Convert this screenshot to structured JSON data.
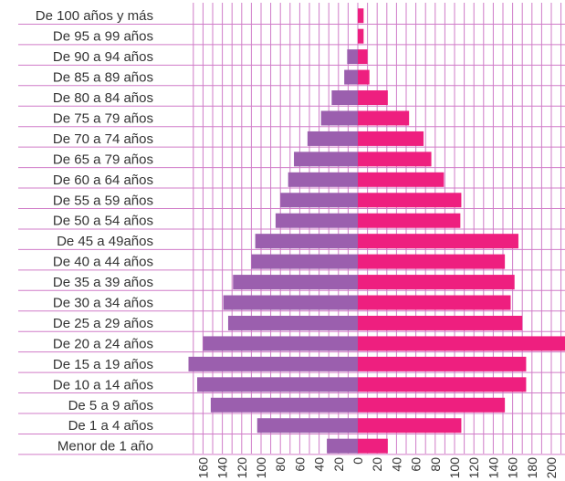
{
  "chart_data": {
    "type": "bar",
    "orientation": "horizontal",
    "subtype": "population-pyramid",
    "categories": [
      "De 100 años y más",
      "De 95 a 99 años",
      "De 90 a 94 años",
      "De 85 a 89 años",
      "De 80 a 84 años",
      "De 75 a 79 años",
      "De 70 a 74 años",
      "De 65 a 79 años",
      "De 60 a 64 años",
      "De 55 a 59 años",
      "De 50 a 54 años",
      "De 45 a 49años",
      "De 40 a 44 años",
      "De 35 a 39 años",
      "De 30 a 34 años",
      "De 25 a 29 años",
      "De 20 a 24 años",
      "De 15 a 19 años",
      "De 10 a 14 años",
      "De 5 a 9 años",
      "De 1 a 4 años",
      "Menor de 1 año"
    ],
    "series": [
      {
        "side": "left",
        "color": "#9b5fae",
        "values": [
          0,
          0,
          11,
          14,
          27,
          38,
          52,
          66,
          72,
          80,
          85,
          106,
          110,
          129,
          139,
          134,
          160,
          175,
          166,
          152,
          104,
          32
        ]
      },
      {
        "side": "right",
        "color": "#ee1f7f",
        "values": [
          6,
          6,
          10,
          12,
          31,
          53,
          68,
          76,
          89,
          107,
          106,
          166,
          152,
          162,
          158,
          170,
          216,
          174,
          174,
          152,
          107,
          31
        ]
      }
    ],
    "x_ticks_left": [
      "160",
      "140",
      "120",
      "100",
      "80",
      "60",
      "40",
      "20"
    ],
    "x_ticks_right": [
      "0",
      "20",
      "40",
      "60",
      "80",
      "100",
      "120",
      "140",
      "160",
      "180",
      "200"
    ],
    "xlim": [
      -170,
      215
    ],
    "grid": true
  }
}
